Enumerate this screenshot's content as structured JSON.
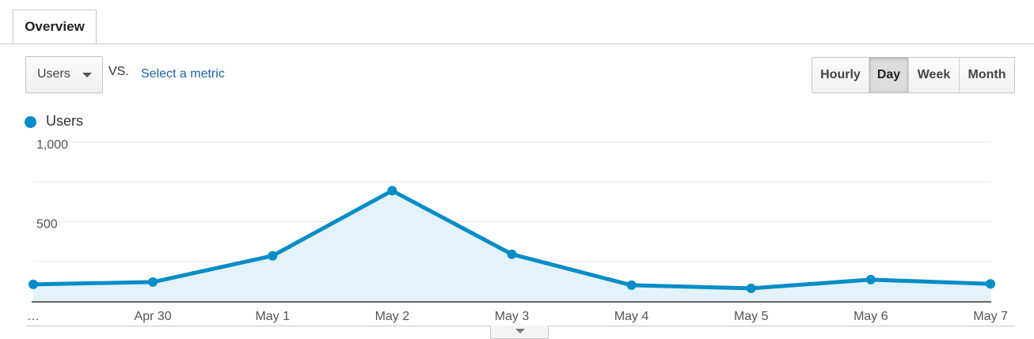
{
  "tabs": [
    {
      "label": "Overview",
      "active": true
    }
  ],
  "toolbar": {
    "metric_selected": "Users",
    "vs_label": "VS.",
    "compare_link": "Select a metric",
    "periods": [
      {
        "label": "Hourly",
        "active": false
      },
      {
        "label": "Day",
        "active": true
      },
      {
        "label": "Week",
        "active": false
      },
      {
        "label": "Month",
        "active": false
      }
    ]
  },
  "legend": {
    "label": "Users",
    "color": "#058dc7"
  },
  "chart_data": {
    "type": "area",
    "x": [
      "…",
      "Apr 30",
      "May 1",
      "May 2",
      "May 3",
      "May 4",
      "May 5",
      "May 6",
      "May 7"
    ],
    "series": [
      {
        "name": "Users",
        "color": "#058dc7",
        "values": [
          105,
          120,
          285,
          695,
          295,
          100,
          80,
          135,
          108
        ]
      }
    ],
    "ylim": [
      0,
      1000
    ],
    "yticks": [
      {
        "value": 1000,
        "label": "1,000"
      },
      {
        "value": 500,
        "label": "500"
      }
    ],
    "grid": true,
    "legend_position": "top-left"
  }
}
